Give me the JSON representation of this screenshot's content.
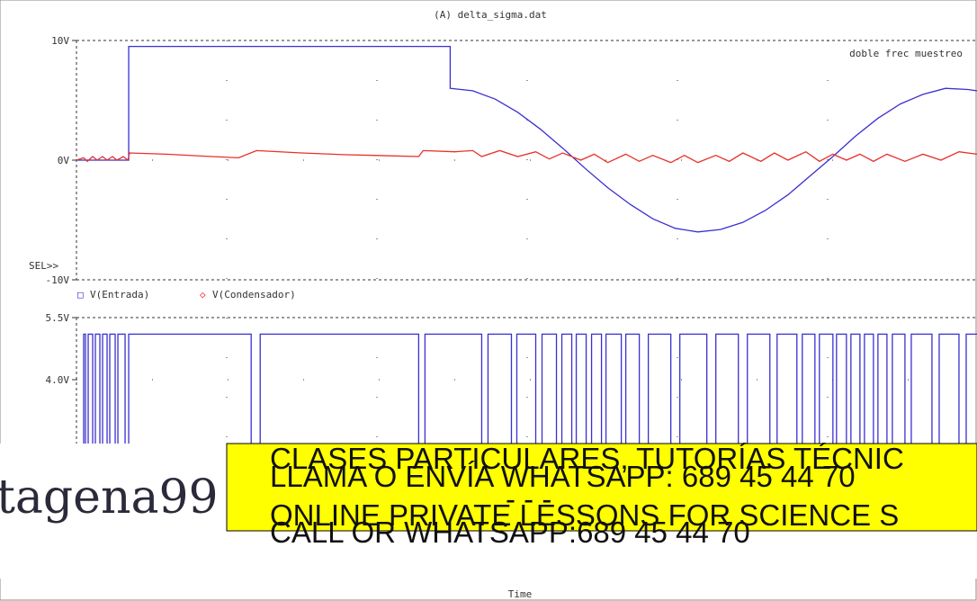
{
  "chart_data": [
    {
      "type": "line",
      "title": "(A) delta_sigma.dat",
      "annotation": "doble frec muestreo",
      "axis_label": "SEL>>",
      "xlim": [
        0,
        100
      ],
      "ylim": [
        -10,
        10
      ],
      "yticks": [
        {
          "value": -10,
          "label": "-10V"
        },
        {
          "value": 0,
          "label": "0V"
        },
        {
          "value": 10,
          "label": "10V"
        }
      ],
      "grid": true,
      "series": [
        {
          "name": "V(Entrada)",
          "marker": "□",
          "color": "#3a2fd0",
          "x": [
            0,
            5.8,
            5.8,
            41.5,
            41.5,
            44,
            46.5,
            49,
            51.5,
            54,
            56.5,
            59,
            61.5,
            64,
            66.5,
            69,
            71.5,
            74,
            76.5,
            79,
            81.5,
            84,
            86.5,
            89,
            91.5,
            94,
            96.5,
            99,
            100
          ],
          "values": [
            0,
            0,
            9.5,
            9.5,
            6,
            5.8,
            5.1,
            4,
            2.6,
            1,
            -0.7,
            -2.3,
            -3.7,
            -4.9,
            -5.7,
            -6,
            -5.8,
            -5.2,
            -4.2,
            -2.9,
            -1.3,
            0.3,
            2,
            3.5,
            4.7,
            5.5,
            6,
            5.9,
            5.8
          ]
        },
        {
          "name": "V(Condensador)",
          "marker": "◇",
          "color": "#e8302a",
          "x": [
            0,
            0.8,
            1.2,
            1.8,
            2.3,
            2.9,
            3.4,
            4,
            4.5,
            5.2,
            5.7,
            5.9,
            10,
            15,
            18,
            20,
            25,
            30,
            33,
            38,
            38.5,
            42,
            44,
            45,
            47,
            49,
            51,
            52.5,
            54,
            56,
            57.5,
            59,
            61,
            62.5,
            64,
            66,
            67.5,
            69,
            71,
            72.5,
            74,
            76,
            77.5,
            79,
            81,
            82.5,
            84,
            85.5,
            87,
            88.5,
            90,
            92,
            94,
            96,
            98,
            100
          ],
          "values": [
            0,
            0.2,
            -0.1,
            0.3,
            0,
            0.3,
            0,
            0.3,
            0,
            0.3,
            0,
            0.6,
            0.5,
            0.3,
            0.2,
            0.8,
            0.6,
            0.45,
            0.4,
            0.3,
            0.8,
            0.7,
            0.8,
            0.3,
            0.8,
            0.3,
            0.7,
            0.1,
            0.6,
            0,
            0.5,
            -0.2,
            0.5,
            -0.1,
            0.4,
            -0.2,
            0.4,
            -0.2,
            0.4,
            -0.1,
            0.6,
            -0.1,
            0.6,
            0,
            0.7,
            -0.1,
            0.5,
            0,
            0.5,
            -0.1,
            0.5,
            -0.1,
            0.5,
            0,
            0.7,
            0.5
          ]
        }
      ]
    },
    {
      "type": "line",
      "xlabel": "Time",
      "xlim": [
        0,
        100
      ],
      "ylim": [
        -0.74,
        5.5
      ],
      "yticks": [
        {
          "value": 4,
          "label": "4.0V"
        },
        {
          "value": 5.5,
          "label": "5.5V"
        }
      ],
      "grid": true,
      "series": [
        {
          "color": "#3a2fd0",
          "x": [
            0.8,
            0.8,
            1,
            1,
            1.3,
            1.3,
            1.8,
            1.8,
            2.1,
            2.1,
            2.6,
            2.6,
            2.9,
            2.9,
            3.4,
            3.4,
            3.7,
            3.7,
            4.3,
            4.3,
            4.6,
            4.6,
            5.4,
            5.4,
            5.8,
            5.8,
            19.4,
            19.4,
            20.4,
            20.4,
            38,
            38,
            38.7,
            38.7,
            45,
            45,
            45.7,
            45.7,
            48.3,
            48.3,
            48.9,
            48.9,
            51,
            51,
            51.7,
            51.7,
            53.3,
            53.3,
            53.9,
            53.9,
            55,
            55,
            55.5,
            55.5,
            56.6,
            56.6,
            57.2,
            57.2,
            58.3,
            58.3,
            58.8,
            58.8,
            60.5,
            60.5,
            61,
            61,
            62.5,
            62.5,
            63.5,
            63.5,
            66,
            66,
            67,
            67,
            70,
            70,
            71,
            71,
            73.5,
            73.5,
            74.5,
            74.5,
            77,
            77,
            77.8,
            77.8,
            80,
            80,
            80.6,
            80.6,
            82,
            82,
            82.5,
            82.5,
            84,
            84,
            84.4,
            84.4,
            85.5,
            85.5,
            86,
            86,
            87,
            87,
            87.5,
            87.5,
            88.5,
            88.5,
            89,
            89,
            90,
            90,
            90.6,
            90.6,
            92,
            92,
            92.7,
            92.7,
            95,
            95,
            95.8,
            95.8,
            98,
            98,
            98.8,
            98.8,
            100
          ],
          "values": [
            0,
            5.1,
            5.1,
            0,
            0,
            5.1,
            5.1,
            0,
            0,
            5.1,
            5.1,
            0,
            0,
            5.1,
            5.1,
            0,
            0,
            5.1,
            5.1,
            0,
            0,
            5.1,
            5.1,
            0,
            0,
            5.1,
            5.1,
            0,
            0,
            5.1,
            5.1,
            0,
            0,
            5.1,
            5.1,
            0,
            0,
            5.1,
            5.1,
            0,
            0,
            5.1,
            5.1,
            0,
            0,
            5.1,
            5.1,
            0,
            0,
            5.1,
            5.1,
            0,
            0,
            5.1,
            5.1,
            0,
            0,
            5.1,
            5.1,
            0,
            0,
            5.1,
            5.1,
            0,
            0,
            5.1,
            5.1,
            0,
            0,
            5.1,
            5.1,
            0,
            0,
            5.1,
            5.1,
            0,
            0,
            5.1,
            5.1,
            0,
            0,
            5.1,
            5.1,
            0,
            0,
            5.1,
            5.1,
            0,
            0,
            5.1,
            5.1,
            0,
            0,
            5.1,
            5.1,
            0,
            0,
            5.1,
            5.1,
            0,
            0,
            5.1,
            5.1,
            0,
            0,
            5.1,
            5.1,
            0,
            0,
            5.1,
            5.1,
            0,
            0,
            5.1,
            5.1,
            0,
            0,
            5.1,
            5.1,
            0,
            0,
            5.1,
            5.1,
            0,
            0,
            5.1,
            5.1
          ]
        }
      ]
    }
  ],
  "overlay": {
    "logo": "tagena99",
    "lines": [
      "CLASES PARTICULARES, TUTORÍAS TÉCNIC",
      "LLAMA O ENVÍA WHATSAPP: 689 45 44 70",
      "- - -",
      "ONLINE PRIVATE LESSONS FOR SCIENCE S",
      "CALL OR WHATSAPP:689 45 44 70"
    ]
  }
}
